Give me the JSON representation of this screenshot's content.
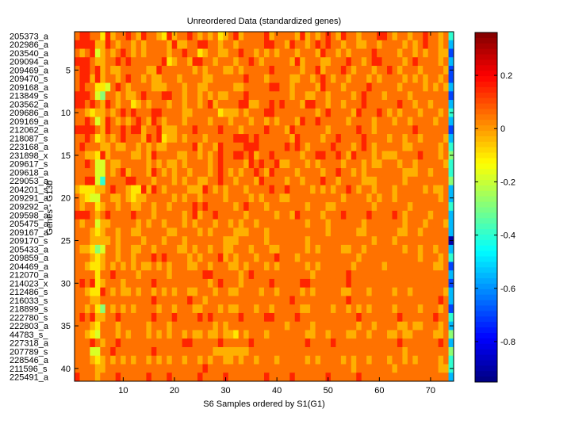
{
  "chart_data": {
    "type": "heatmap",
    "title": "Unreordered Data (standardized genes)",
    "xlabel": "S6 Samples ordered by S1(G1)",
    "ylabel": "Genes - G13b",
    "n_cols": 74,
    "xlim": [
      0.5,
      74.5
    ],
    "xticks": [
      10,
      20,
      30,
      40,
      50,
      60,
      70
    ],
    "yticks": [
      5,
      10,
      15,
      20,
      25,
      30,
      35,
      40
    ],
    "row_labels": [
      "205373_a",
      "202986_a",
      "203540_a",
      "209094_a",
      "209469_a",
      "209470_s",
      "209168_a",
      "213849_s",
      "203562_a",
      "209686_a",
      "209169_a",
      "212062_a",
      "218087_s",
      "223168_a",
      "231898_x",
      "209617_s",
      "209618_a",
      "229053_a",
      "204201_s",
      "209291_a",
      "209292_a",
      "209598_a",
      "205475_a",
      "209167_a",
      "209170_s",
      "205433_a",
      "209859_a",
      "204469_a",
      "212070_a",
      "214023_x",
      "212486_s",
      "216033_s",
      "218899_s",
      "222780_s",
      "222803_a",
      "44783_s_",
      "227318_a",
      "207789_s",
      "228546_a",
      "211596_s",
      "225491_a"
    ],
    "colormap": "jet",
    "clim": [
      -0.952,
      0.361
    ],
    "colorbar_ticks": [
      0.2,
      0,
      -0.2,
      -0.4,
      -0.6,
      -0.8
    ],
    "colorbar_tick_labels": [
      "0.2",
      "0",
      "-0.2",
      "-0.4",
      "-0.6",
      "-0.8"
    ],
    "level_values": [
      -0.9,
      -0.7,
      -0.55,
      -0.4,
      -0.28,
      -0.18,
      -0.1,
      -0.03,
      0.05,
      0.15
    ],
    "matrix_levels_note": "each row string: one digit per sample column, digit indexes level_values",
    "matrix_rows": [
      "8998869788 9879887697 8898787867 8978888978 8887978789 8798878889 9878878898 878 3",
      "9999779878 8787888879 7788998878 8788888998 8798878989 8878877887 8888787898 878 2",
      "8789578789 8787888878 8988678877 8898878787 8887888798 8787888898 8887887878 877 1",
      "9998778898 9888888967 8879988788 8788987888 8879788877 8889887899 8888789888 878 2",
      "8998978778 8888779888 8887878887 7878888898 8888788978 8898788878 8987888788 887 1",
      "8997978878 9887877888 7888877888 8889888788 8877887898 7887888787 8888787878 878 1",
      "8988665898 7888877788 8788778888 8778888899 8878888798 8878888988 8887888878 787 2",
      "9998548878 7789888998 8788787877 8889888888 8878877887 8888789888 7888878888 888 1",
      "9989879878 8678788878 8788789788 8899778898 9888799887 8878889888 8889887887 888 2",
      "8876778789 8988899888 8778888867 7787888998 8888888789 8888798889 8787888788 878 3",
      "8898579878 7898798788 8788887888 7888788787 8887988988 8887888878 8878878888 788 2",
      "9999879889 8997889777 8889888898 8878888988 8798888887 8888898878 8888889888 888 1",
      "8898678789 8887989677 8788878888 8999898888 8879888878 8988889888 8788788788 887 2",
      "8988877877 8878787788 8889788798 8889998888 8989878888 9888789878 8888778888 878 3",
      "8877697888 8778798888 7788787898 8998978898 8888788998 8987988878 7778888988 878 4",
      "8898558778 8888787877 8788887898 8887989889 7788878788 8878887877 8887887888 887 3",
      "8888558789 7888798787 8878887898 7878898798 8887888878 8988787888 8888777887 888 3",
      "8899538888 9988878887 8788778898 8788879888 8788788898 8788887778 8888788888 888 4",
      "7666778988 7669798788 8877798787 8887888898 8988887878 7889878878 8878888878 778 2",
      "8765588778 7677888887 8788788887 8888787888 7788888888 8878888787 8878888888 878 2",
      "8788678878 8778878878 8889898888 8789888788 8888878887 7888888878 8888878888 888 3",
      "9998789888 8988878888 8789788988 8887888887 8879888878 8898888988 8898788887 888 2",
      "8788577888 8878788788 8787888788 7878878888 8888878887 8888887888 8888788878 887 2",
      "8887678878 8778888877 8888787888 8777888788 8888888887 8888877888 8887788788 888 2",
      "8887777878 8887888788 8788888887 7788888788 8888878888 8888888878 8878888888 888 0",
      "8776458878 8778878888 7787887887 7888788877 8888878788 8877887888 8888788788 788 2",
      "8887678878 8788898988 8878788897 8788878889 8887888888 8888878888 8888888788 878 3",
      "8876678787 8787787878 8877887888 7787888787 8888878788 8888788888 7888888888 778 1",
      "8888688988 8878888878 8888899888 8878988888 8888887888 8889888888 8888888888 888 2",
      "8989678887 8888898888 8888887898 8878888898 8888998888 8889888888 8888888888 888 1",
      "8876698787 7878878787 8877888788 7788887887 8888787888 8877888788 8878878888 887 2",
      "8887788888 8888898888 8898878888 8888888888 8898888888 8889888888 8888888888 898 2",
      "8878648787 8788887887 8887788878 7788878878 8888778888 7887878788 8878888788 878 1",
      "8989778898 8888898889 8888989888 8898888998 8889888888 8888898888 8889888888 988 3",
      "8887688878 8888788878 8888888787 8888888888 8788887888 8888878878 8887787788 878 2",
      "8876588878 7888787878 8787787787 7687888788 8888877887 8887788788 8778778888 778 4",
      "8889878898 8888888888 8998888898 8888988888 8888898888 9888888888 8889888888 898 2",
      "8885588988 8888898888 8888888777 7777888888 8888888888 8888888888 8888788888 888 4",
      "8887678787 8788787878 8788787887 7878878887 8888878788 8878788788 8788787888 878 3",
      "8888778888 8888888888 8888898888 8888888888 8888888888 8888788888 8878888888 877 3",
      "9888788898 8888988898 8888988889 8888888988 8898888889 8888898888 8888888888 888 2"
    ]
  }
}
